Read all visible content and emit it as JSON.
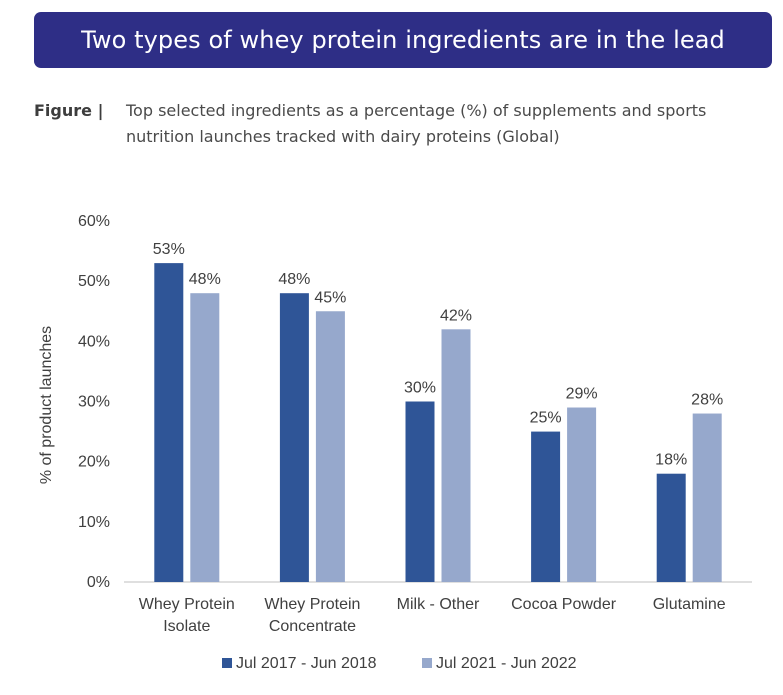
{
  "header": {
    "title": "Two types of whey protein ingredients are in the lead"
  },
  "caption": {
    "label": "Figure |",
    "text": "Top selected ingredients as a percentage (%) of supplements and sports nutrition launches tracked with dairy proteins (Global)"
  },
  "chart_data": {
    "type": "bar",
    "categories": [
      [
        "Whey Protein",
        "Isolate"
      ],
      [
        "Whey Protein",
        "Concentrate"
      ],
      [
        "Milk - Other"
      ],
      [
        "Cocoa Powder"
      ],
      [
        "Glutamine"
      ]
    ],
    "series": [
      {
        "name": "Jul 2017 - Jun 2018",
        "color": "#2f5597",
        "values": [
          53,
          48,
          30,
          25,
          18
        ]
      },
      {
        "name": "Jul 2021 - Jun 2022",
        "color": "#96a8cc",
        "values": [
          48,
          45,
          42,
          29,
          28
        ]
      }
    ],
    "ylabel": "% of product launches",
    "ylim": [
      0,
      60
    ],
    "yticks": [
      "0%",
      "10%",
      "20%",
      "30%",
      "40%",
      "50%",
      "60%"
    ],
    "value_suffix": "%",
    "grid": false,
    "legend_position": "bottom"
  }
}
